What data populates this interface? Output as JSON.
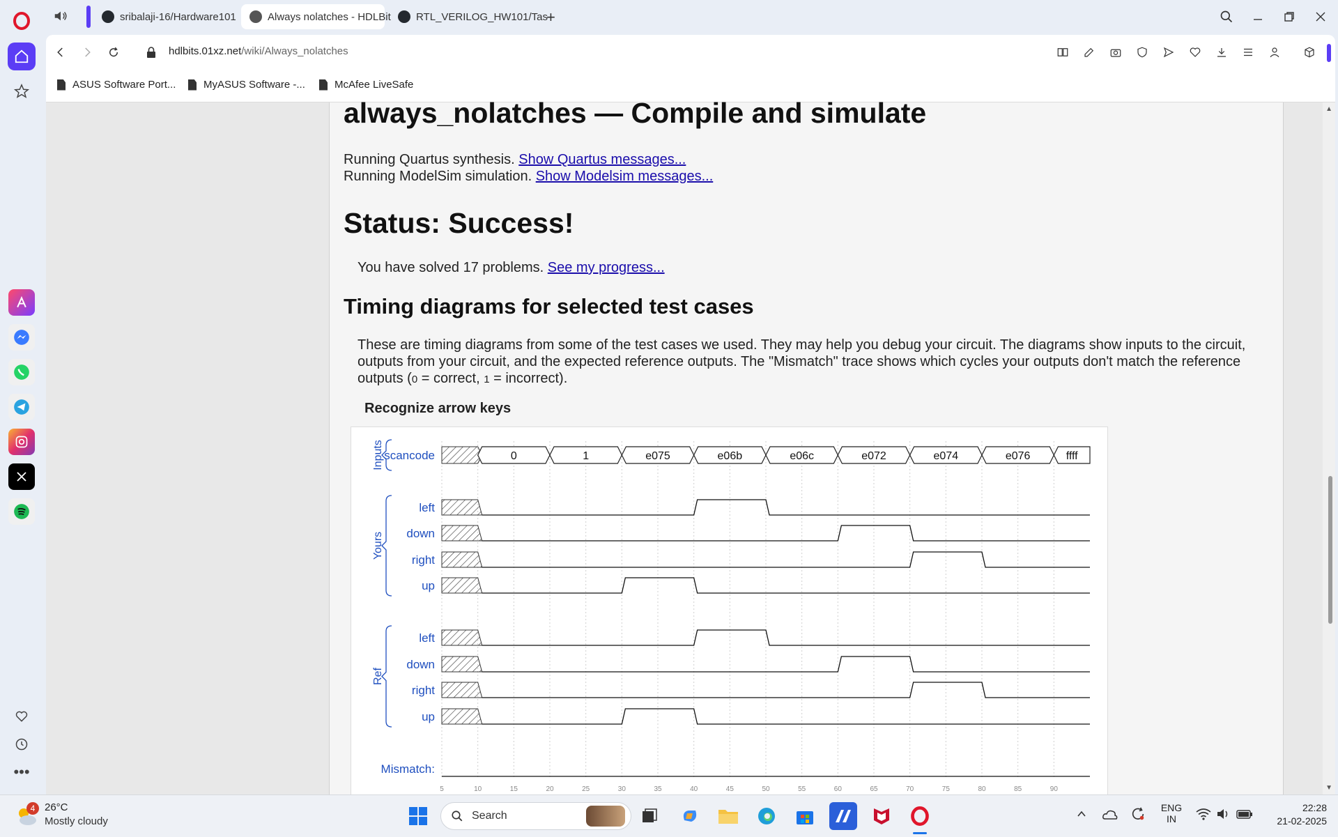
{
  "browser": {
    "tabs": [
      {
        "label": "sribalaji-16/Hardware101",
        "active": false
      },
      {
        "label": "Always nolatches - HDLBit",
        "active": true
      },
      {
        "label": "RTL_VERILOG_HW101/Tas",
        "active": false
      }
    ],
    "address": {
      "domain": "hdlbits.01xz.net",
      "path": "/wiki/Always_nolatches"
    },
    "bookmarks": [
      "ASUS Software Port...",
      "MyASUS Software -...",
      "McAfee LiveSafe"
    ]
  },
  "page": {
    "title": "always_nolatches — Compile and simulate",
    "quartus_text": "Running Quartus synthesis.",
    "quartus_link": "Show Quartus messages...",
    "modelsim_text": "Running ModelSim simulation.",
    "modelsim_link": "Show Modelsim messages...",
    "status": "Status: Success!",
    "solved_text": "You have solved 17 problems.",
    "progress_link": "See my progress...",
    "timing_heading": "Timing diagrams for selected test cases",
    "timing_para_1": "These are timing diagrams from some of the test cases we used. They may help you debug your circuit. The diagrams show inputs to the circuit, outputs from your circuit, and the expected reference outputs. The \"Mismatch\" trace shows which cycles your outputs don't match the reference outputs (",
    "timing_para_zero": "0",
    "timing_para_2": " = correct, ",
    "timing_para_one": "1",
    "timing_para_3": " = incorrect).",
    "waveform_title": "Recognize arrow keys"
  },
  "waveform": {
    "group_labels": {
      "inputs": "Inputs",
      "yours": "Yours",
      "ref": "Ref"
    },
    "input_signal": "scancode",
    "scancode_values": [
      "0",
      "1",
      "e075",
      "e06b",
      "e06c",
      "e072",
      "e074",
      "e076",
      "ffff"
    ],
    "signals": [
      "left",
      "down",
      "right",
      "up"
    ],
    "mismatch_label": "Mismatch:",
    "time_ticks": [
      "5",
      "10",
      "15",
      "20",
      "25",
      "30",
      "35",
      "40",
      "45",
      "50",
      "55",
      "60",
      "65",
      "70",
      "75",
      "80",
      "85",
      "90"
    ],
    "high_intervals": {
      "left": [
        [
          40,
          50
        ]
      ],
      "down": [
        [
          60,
          70
        ]
      ],
      "right": [
        [
          70,
          80
        ]
      ],
      "up": [
        [
          30,
          40
        ]
      ]
    },
    "undefined_until": 10,
    "time_range": [
      5,
      95
    ],
    "mismatch": "none"
  },
  "taskbar": {
    "weather_temp": "26°C",
    "weather_desc": "Mostly cloudy",
    "weather_badge": "4",
    "search_label": "Search",
    "lang_1": "ENG",
    "lang_2": "IN",
    "time": "22:28",
    "date": "21-02-2025"
  }
}
